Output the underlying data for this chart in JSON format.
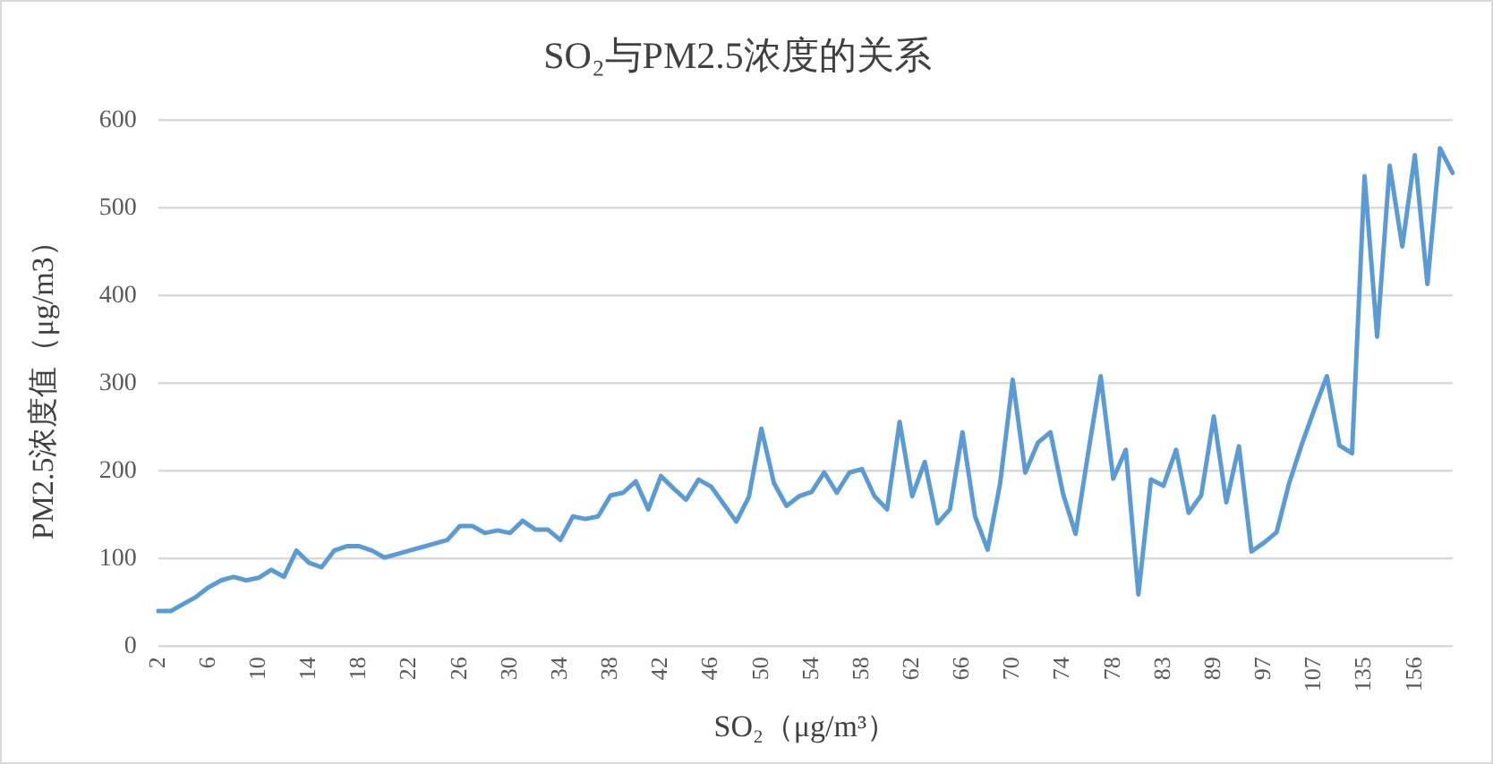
{
  "chart_data": {
    "type": "line",
    "title": "SO₂与PM2.5浓度的关系",
    "xlabel": "SO₂（μg/m³）",
    "ylabel": "PM2.5浓度值（μg/m3）",
    "categories": [
      "2",
      null,
      null,
      null,
      "6",
      null,
      null,
      null,
      "10",
      null,
      null,
      null,
      "14",
      null,
      null,
      null,
      "18",
      null,
      null,
      null,
      "22",
      null,
      null,
      null,
      "26",
      null,
      null,
      null,
      "30",
      null,
      null,
      null,
      "34",
      null,
      null,
      null,
      "38",
      null,
      null,
      null,
      "42",
      null,
      null,
      null,
      "46",
      null,
      null,
      null,
      "50",
      null,
      null,
      null,
      "54",
      null,
      null,
      null,
      "58",
      null,
      null,
      null,
      "62",
      null,
      null,
      null,
      "66",
      null,
      null,
      null,
      "70",
      null,
      null,
      null,
      "74",
      null,
      null,
      null,
      "78",
      null,
      null,
      null,
      "83",
      null,
      null,
      null,
      "89",
      null,
      null,
      null,
      "97",
      null,
      null,
      null,
      "107",
      null,
      null,
      null,
      "135",
      null,
      null,
      null,
      "156",
      null,
      null,
      null
    ],
    "series": [
      {
        "color": "#5b9bd5",
        "values": [
          40,
          40,
          48,
          56,
          67,
          75,
          79,
          75,
          78,
          87,
          79,
          109,
          95,
          90,
          109,
          114,
          114,
          109,
          101,
          105,
          109,
          113,
          117,
          121,
          137,
          137,
          129,
          132,
          129,
          143,
          133,
          133,
          121,
          148,
          145,
          148,
          172,
          175,
          188,
          156,
          194,
          180,
          167,
          190,
          182,
          162,
          142,
          170,
          248,
          186,
          160,
          171,
          176,
          198,
          175,
          198,
          202,
          171,
          156,
          256,
          171,
          210,
          140,
          156,
          244,
          148,
          110,
          186,
          304,
          198,
          232,
          244,
          174,
          128,
          220,
          308,
          191,
          224,
          59,
          190,
          183,
          224,
          152,
          172,
          262,
          164,
          228,
          108,
          118,
          130,
          186,
          230,
          270,
          308,
          229,
          220,
          536,
          353,
          548,
          456,
          560,
          413,
          568,
          540
        ]
      }
    ],
    "ylim": [
      0,
      600
    ],
    "yticks": [
      0,
      100,
      200,
      300,
      400,
      500,
      600
    ],
    "grid": "y",
    "legend": false,
    "marker": "none",
    "line_style": "solid"
  }
}
